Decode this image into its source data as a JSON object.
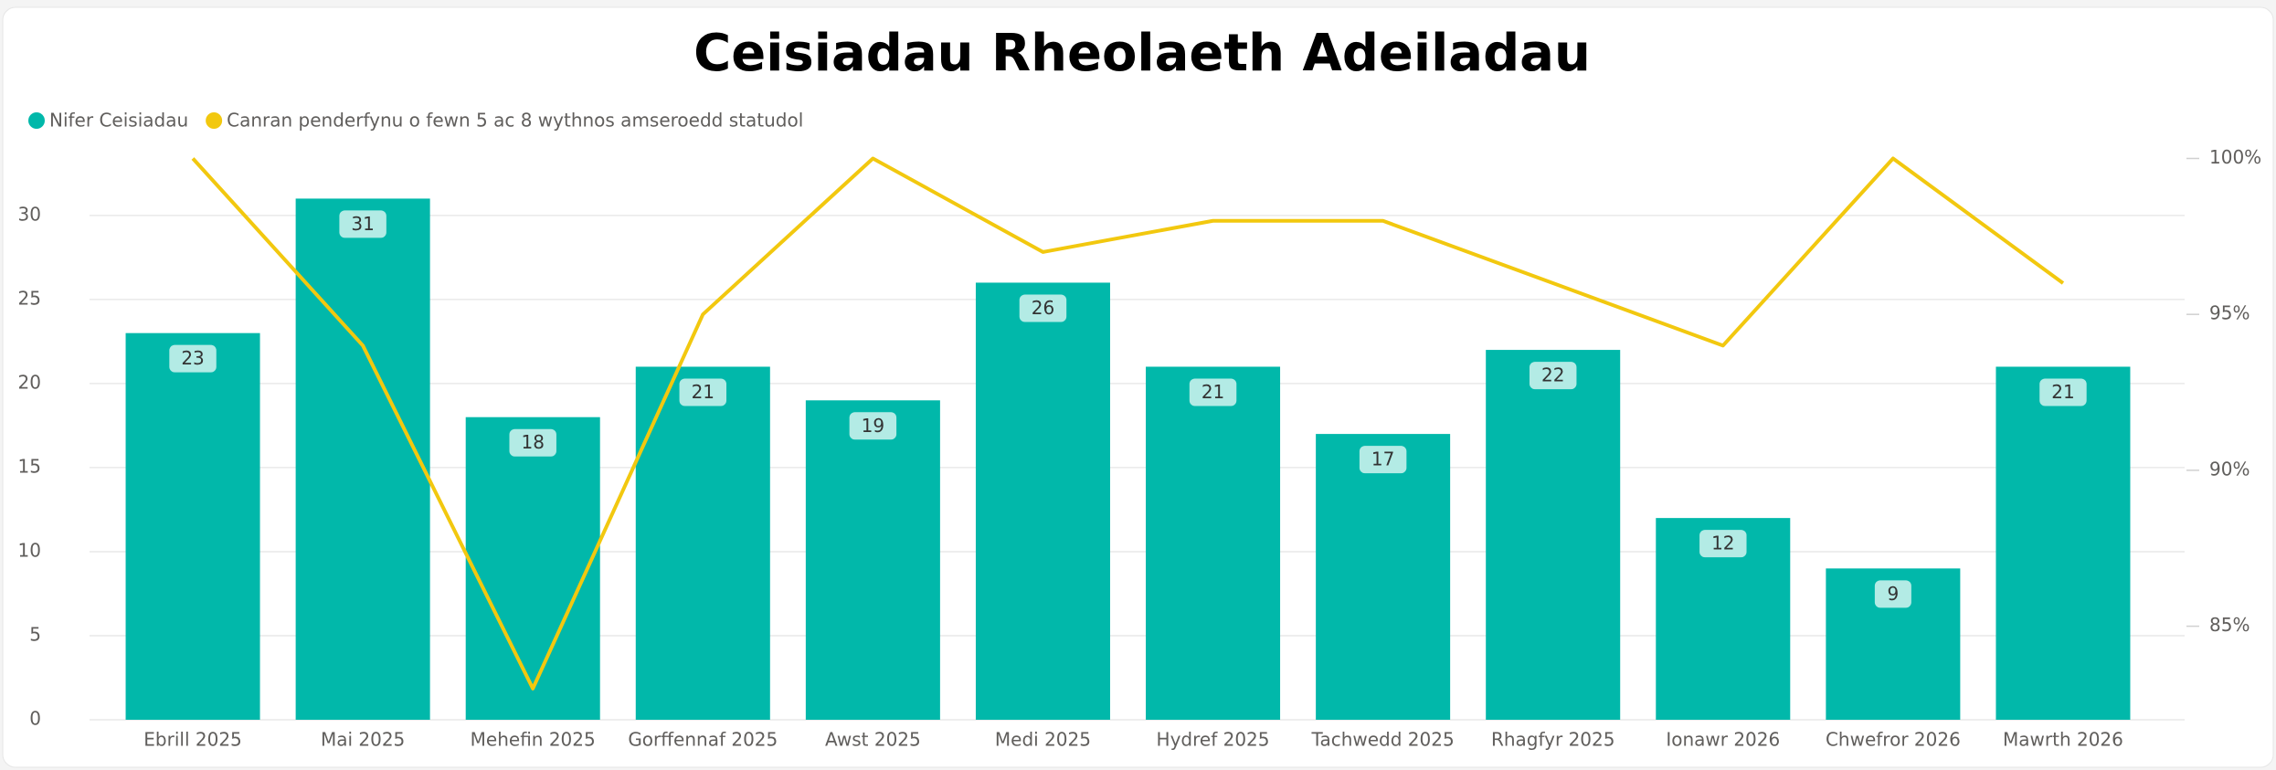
{
  "chart_data": {
    "type": "bar_line",
    "title": "Ceisiadau Rheolaeth Adeiladau",
    "categories": [
      "Ebrill 2025",
      "Mai 2025",
      "Mehefin 2025",
      "Gorffennaf 2025",
      "Awst 2025",
      "Medi 2025",
      "Hydref 2025",
      "Tachwedd 2025",
      "Rhagfyr 2025",
      "Ionawr 2026",
      "Chwefror 2026",
      "Mawrth 2026"
    ],
    "series": [
      {
        "name": "Nifer Ceisiadau",
        "color": "#01B8AA",
        "type": "bar",
        "values": [
          23,
          31,
          18,
          21,
          19,
          26,
          21,
          17,
          22,
          12,
          9,
          21
        ]
      },
      {
        "name": "Canran penderfynu o fewn 5 ac 8 wythnos amseroedd statudol",
        "color": "#F2C80F",
        "type": "line",
        "axis": "y2",
        "values": [
          100,
          94,
          83,
          95,
          100,
          97,
          98,
          98,
          96,
          94,
          100,
          96
        ]
      }
    ],
    "ylim": [
      0,
      34.5
    ],
    "yticks": [
      0,
      5,
      10,
      15,
      20,
      25,
      30
    ],
    "y2lim": [
      82,
      100.6
    ],
    "y2ticks": [
      {
        "value": 85,
        "label": "85%"
      },
      {
        "value": 90,
        "label": "90%"
      },
      {
        "value": 95,
        "label": "95%"
      },
      {
        "value": 100,
        "label": "100%"
      }
    ],
    "grid": true,
    "legend": "top-left"
  }
}
